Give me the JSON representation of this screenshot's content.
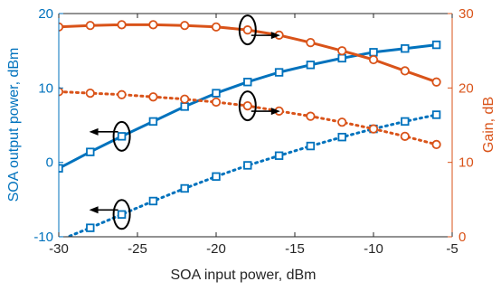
{
  "chart_data": {
    "type": "line",
    "title": "",
    "xlabel": "SOA input power, dBm",
    "ylabel_left": "SOA output power, dBm",
    "ylabel_right": "Gain, dB",
    "xlim": [
      -30,
      -5
    ],
    "ylim_left": [
      -10,
      20
    ],
    "ylim_right": [
      0,
      30
    ],
    "x_ticks": [
      "-30",
      "-25",
      "-20",
      "-15",
      "-10",
      "-5"
    ],
    "y_left_ticks": [
      "-10",
      "0",
      "10",
      "20"
    ],
    "y_right_ticks": [
      "0",
      "10",
      "20",
      "30"
    ],
    "grid": false,
    "legend": "none",
    "colors": {
      "blue": "#0072BD",
      "orange": "#D95319",
      "axis": "#262626"
    },
    "series": [
      {
        "axis": "left",
        "color": "#0072BD",
        "line": "solid",
        "marker": "square",
        "x": [
          -30,
          -28,
          -26,
          -24,
          -22,
          -20,
          -18,
          -16,
          -14,
          -12,
          -10,
          -8,
          -6
        ],
        "y": [
          -0.8,
          1.4,
          3.5,
          5.5,
          7.5,
          9.3,
          10.8,
          12.1,
          13.1,
          14.0,
          14.8,
          15.3,
          15.8
        ]
      },
      {
        "axis": "left",
        "color": "#0072BD",
        "line": "dotted",
        "marker": "square",
        "x": [
          -30,
          -28,
          -26,
          -24,
          -22,
          -20,
          -18,
          -16,
          -14,
          -12,
          -10,
          -8,
          -6
        ],
        "y": [
          -10.5,
          -8.8,
          -7.0,
          -5.2,
          -3.5,
          -1.9,
          -0.4,
          0.9,
          2.2,
          3.4,
          4.5,
          5.5,
          6.4
        ]
      },
      {
        "axis": "right",
        "color": "#D95319",
        "line": "solid",
        "marker": "circle",
        "x": [
          -30,
          -28,
          -26,
          -24,
          -22,
          -20,
          -18,
          -16,
          -14,
          -12,
          -10,
          -8,
          -6
        ],
        "y": [
          28.2,
          28.4,
          28.5,
          28.5,
          28.4,
          28.2,
          27.8,
          27.1,
          26.1,
          25.0,
          23.8,
          22.3,
          20.8
        ]
      },
      {
        "axis": "right",
        "color": "#D95319",
        "line": "dotted",
        "marker": "circle",
        "x": [
          -30,
          -28,
          -26,
          -24,
          -22,
          -20,
          -18,
          -16,
          -14,
          -12,
          -10,
          -8,
          -6
        ],
        "y": [
          19.5,
          19.3,
          19.1,
          18.8,
          18.5,
          18.1,
          17.6,
          16.9,
          16.2,
          15.4,
          14.5,
          13.5,
          12.4
        ]
      }
    ],
    "annotations": [
      {
        "shape": "ellipse-arrow",
        "x": -26,
        "y": 3.5,
        "axis": "left",
        "direction": "left"
      },
      {
        "shape": "ellipse-arrow",
        "x": -26,
        "y": -7.0,
        "axis": "left",
        "direction": "left"
      },
      {
        "shape": "ellipse-arrow",
        "x": -18,
        "y": 27.8,
        "axis": "right",
        "direction": "right"
      },
      {
        "shape": "ellipse-arrow",
        "x": -18,
        "y": 17.6,
        "axis": "right",
        "direction": "right"
      }
    ]
  }
}
